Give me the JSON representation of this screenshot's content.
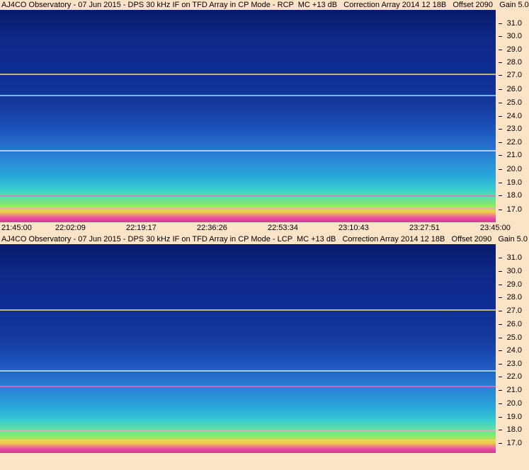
{
  "panels": [
    {
      "header": "AJ4CO Observatory - 07 Jun 2015 - DPS 30 kHz IF on TFD Array in CP Mode - RCP  MC +13 dB   Correction Array 2014 12 18B   Offset 2090   Gain 5.0",
      "polarization": "RCP"
    },
    {
      "header": "AJ4CO Observatory - 07 Jun 2015 - DPS 30 kHz IF on TFD Array in CP Mode - LCP  MC +13 dB   Correction Array 2014 12 18B   Offset 2090   Gain 5.0",
      "polarization": "LCP"
    }
  ],
  "y_ticks": [
    "31.0",
    "30.0",
    "29.0",
    "28.0",
    "27.0",
    "26.0",
    "25.0",
    "24.0",
    "23.0",
    "22.0",
    "21.0",
    "20.0",
    "19.0",
    "18.0",
    "17.0"
  ],
  "x_ticks": [
    "21:45:00",
    "22:02:09",
    "22:19:17",
    "22:36:26",
    "22:53:34",
    "23:10:43",
    "23:27:51",
    "23:45:00"
  ],
  "colors": {
    "background": "#fbe3c7",
    "spectrum_low": "#0a1a6b",
    "spectrum_mid": "#2a86d6",
    "spectrum_high": "#ea4ea8"
  }
}
